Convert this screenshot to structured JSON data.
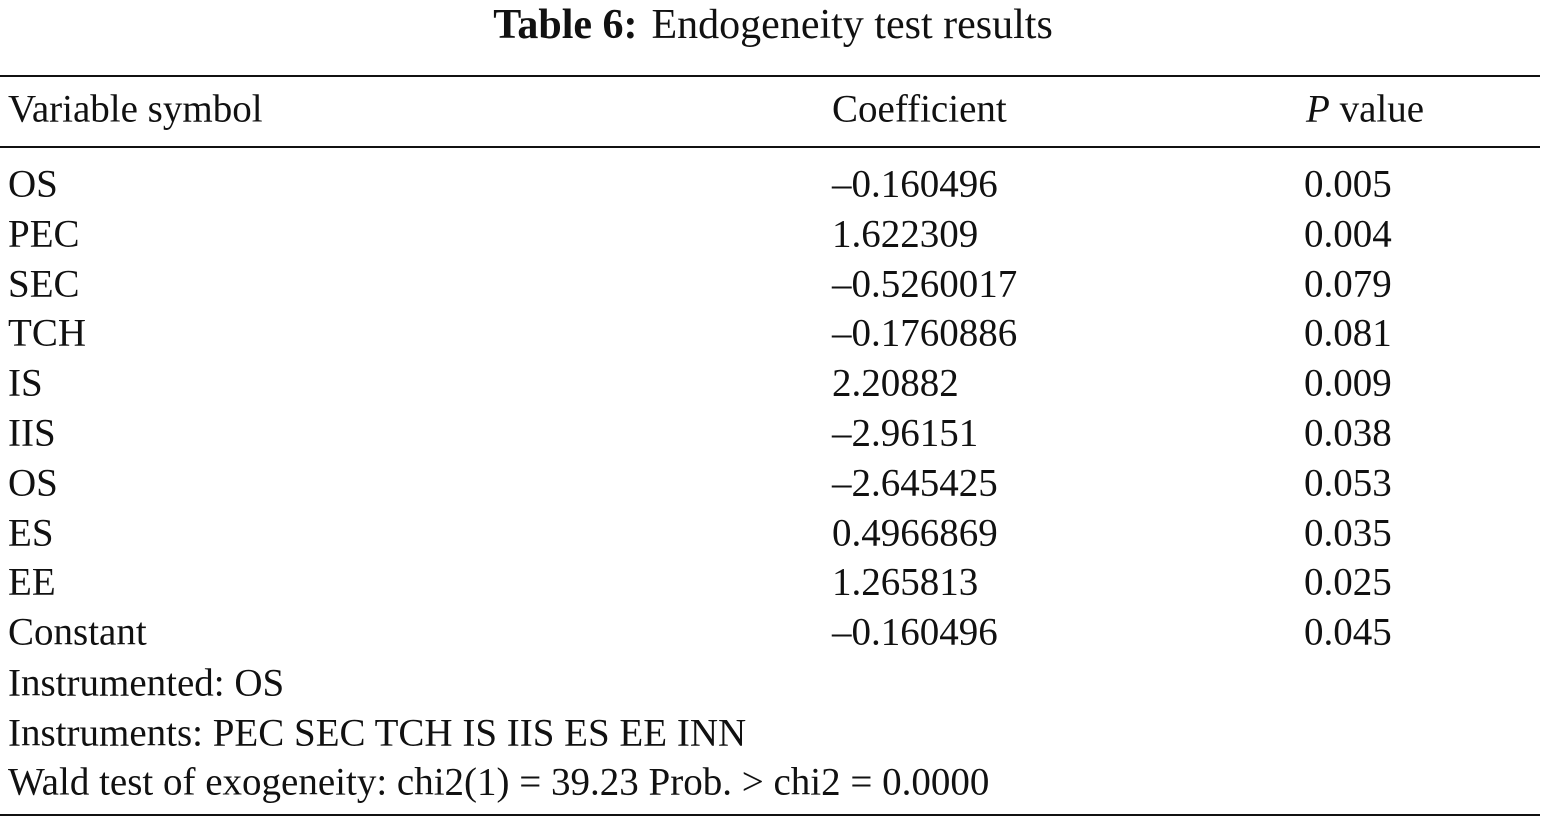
{
  "title": {
    "label": "Table 6:",
    "text": "Endogeneity test results"
  },
  "table": {
    "header": [
      "Variable symbol",
      "Coefficient",
      {
        "em": "P",
        "rest": "value"
      }
    ],
    "rows": [
      [
        "OS",
        "–0.160496",
        "0.005"
      ],
      [
        "PEC",
        "1.622309",
        "0.004"
      ],
      [
        "SEC",
        "–0.5260017",
        "0.079"
      ],
      [
        "TCH",
        "–0.1760886",
        "0.081"
      ],
      [
        "IS",
        "2.20882",
        "0.009"
      ],
      [
        "IIS",
        "–2.96151",
        "0.038"
      ],
      [
        "OS",
        "–2.645425",
        "0.053"
      ],
      [
        "ES",
        "0.4966869",
        "0.035"
      ],
      [
        "EE",
        "1.265813",
        "0.025"
      ],
      [
        "Constant",
        "–0.160496",
        "0.045"
      ]
    ],
    "notes": [
      "Instrumented: OS",
      "Instruments: PEC SEC TCH IS IIS ES EE INN",
      "Wald test of exogeneity: chi2(1) = 39.23 Prob. > chi2 = 0.0000"
    ]
  }
}
